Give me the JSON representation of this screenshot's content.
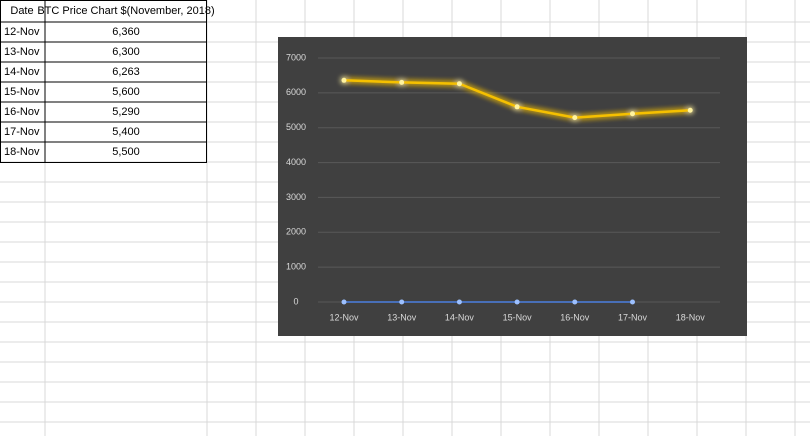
{
  "table": {
    "header": [
      "Date",
      "BTC Price Chart $(November, 2018)"
    ],
    "rows": [
      [
        "12-Nov",
        "6,360"
      ],
      [
        "13-Nov",
        "6,300"
      ],
      [
        "14-Nov",
        "6,263"
      ],
      [
        "15-Nov",
        "5,600"
      ],
      [
        "16-Nov",
        "5,290"
      ],
      [
        "17-Nov",
        "5,400"
      ],
      [
        "18-Nov",
        "5,500"
      ]
    ]
  },
  "chart_data": {
    "type": "line",
    "categories": [
      "12-Nov",
      "13-Nov",
      "14-Nov",
      "15-Nov",
      "16-Nov",
      "17-Nov",
      "18-Nov"
    ],
    "series": [
      {
        "color": "#f5c000",
        "values": [
          6360,
          6300,
          6263,
          5600,
          5290,
          5400,
          5500
        ]
      },
      {
        "color": "#4a7fe0",
        "values": [
          0,
          0,
          0,
          0,
          0,
          0,
          null
        ]
      }
    ],
    "ylim": [
      0,
      7000
    ],
    "yticks": [
      0,
      1000,
      2000,
      3000,
      4000,
      5000,
      6000,
      7000
    ],
    "grid": true
  }
}
